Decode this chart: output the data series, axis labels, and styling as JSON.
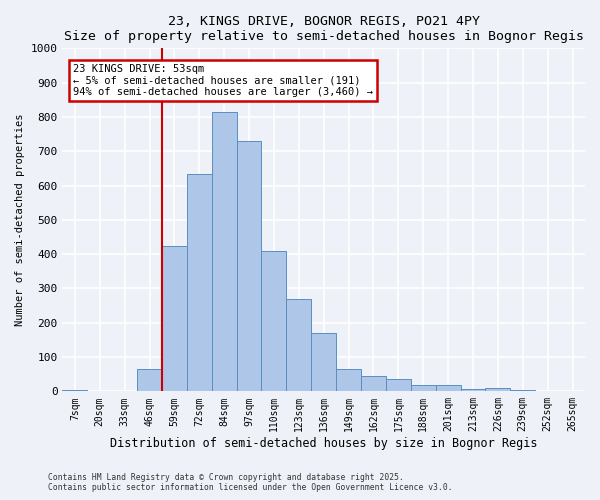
{
  "title": "23, KINGS DRIVE, BOGNOR REGIS, PO21 4PY",
  "subtitle": "Size of property relative to semi-detached houses in Bognor Regis",
  "xlabel": "Distribution of semi-detached houses by size in Bognor Regis",
  "ylabel": "Number of semi-detached properties",
  "categories": [
    "7sqm",
    "20sqm",
    "33sqm",
    "46sqm",
    "59sqm",
    "72sqm",
    "84sqm",
    "97sqm",
    "110sqm",
    "123sqm",
    "136sqm",
    "149sqm",
    "162sqm",
    "175sqm",
    "188sqm",
    "201sqm",
    "213sqm",
    "226sqm",
    "239sqm",
    "252sqm",
    "265sqm"
  ],
  "values": [
    5,
    0,
    0,
    65,
    425,
    635,
    815,
    730,
    410,
    270,
    170,
    65,
    45,
    35,
    18,
    18,
    8,
    10,
    5,
    2,
    1
  ],
  "bar_color": "#aec6e8",
  "bar_edge_color": "#5a8fc0",
  "vline_color": "#cc0000",
  "annotation_text": "23 KINGS DRIVE: 53sqm\n← 5% of semi-detached houses are smaller (191)\n94% of semi-detached houses are larger (3,460) →",
  "annotation_box_color": "#ffffff",
  "annotation_box_edge_color": "#cc0000",
  "ylim": [
    0,
    1000
  ],
  "yticks": [
    0,
    100,
    200,
    300,
    400,
    500,
    600,
    700,
    800,
    900,
    1000
  ],
  "footer_line1": "Contains HM Land Registry data © Crown copyright and database right 2025.",
  "footer_line2": "Contains public sector information licensed under the Open Government Licence v3.0.",
  "bg_color": "#eef2f8",
  "plot_bg_color": "#eef2f8",
  "grid_color": "#ffffff"
}
